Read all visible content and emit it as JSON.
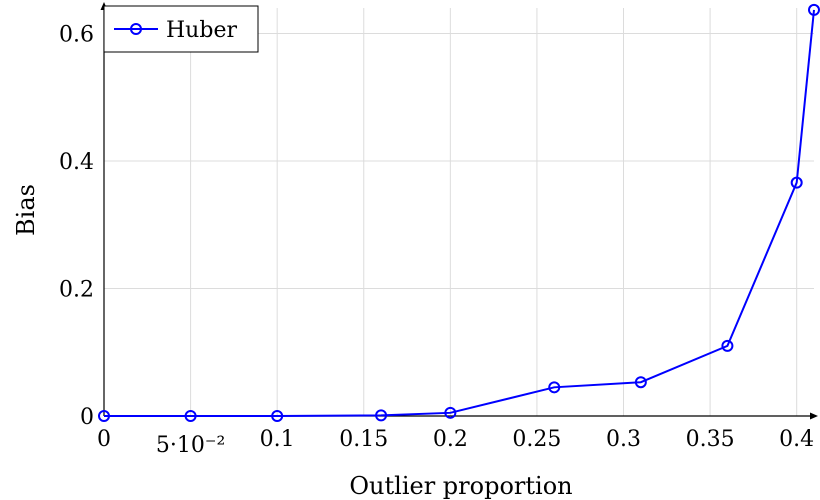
{
  "chart_data": {
    "type": "line",
    "xlabel": "Outlier proportion",
    "ylabel": "Bias",
    "xlim": [
      0,
      0.41
    ],
    "ylim": [
      0,
      0.64
    ],
    "grid": true,
    "legend_position": "top-left",
    "x_ticks": [
      0,
      0.05,
      0.1,
      0.15,
      0.2,
      0.25,
      0.3,
      0.35,
      0.4
    ],
    "x_tick_labels": [
      "0",
      "5·10⁻²",
      "0.1",
      "0.15",
      "0.2",
      "0.25",
      "0.3",
      "0.35",
      "0.4"
    ],
    "y_ticks": [
      0,
      0.2,
      0.4,
      0.6
    ],
    "y_tick_labels": [
      "0",
      "0.2",
      "0.4",
      "0.6"
    ],
    "series": [
      {
        "name": "Huber",
        "color": "#0000ff",
        "marker": "circle-open",
        "x": [
          0,
          0.05,
          0.1,
          0.16,
          0.2,
          0.26,
          0.31,
          0.36,
          0.4,
          0.41
        ],
        "y": [
          0,
          0,
          0,
          0.001,
          0.005,
          0.045,
          0.053,
          0.11,
          0.366,
          0.637
        ]
      }
    ]
  }
}
